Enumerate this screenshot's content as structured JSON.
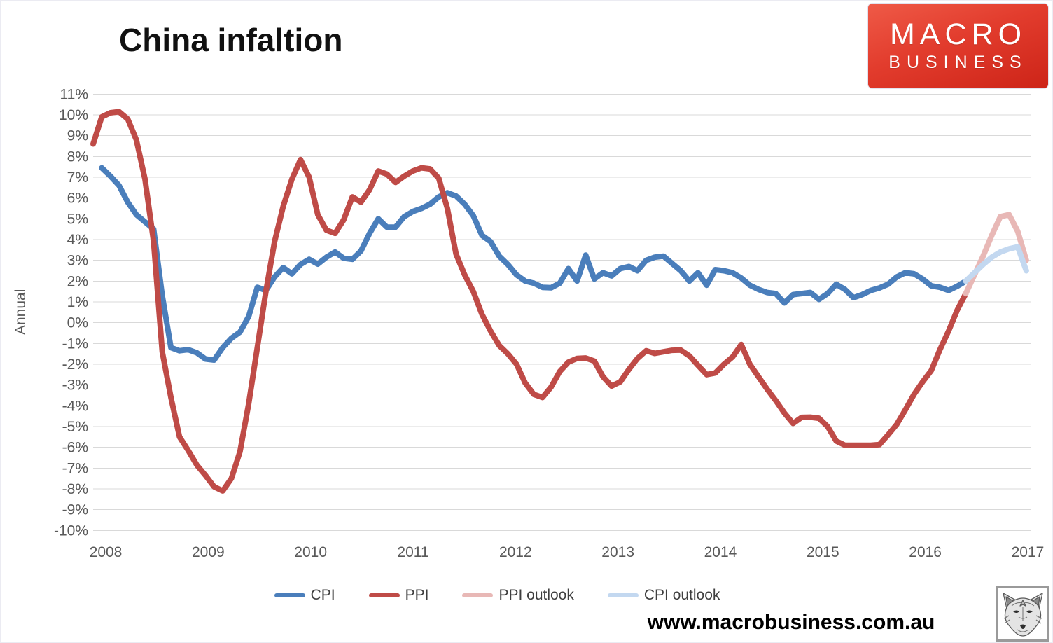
{
  "title": "China infaltion",
  "logo": {
    "line1": "MACRO",
    "line2": "BUSINESS"
  },
  "footer": {
    "url": "www.macrobusiness.com.au",
    "wolf_logo_icon": "wolf-sketch-icon"
  },
  "colors": {
    "cpi": "#4a7ebb",
    "ppi": "#bf4b47",
    "ppi_outlook": "#e8b8b6",
    "cpi_outlook": "#c3d8f0",
    "gridline": "#d9d9d9",
    "axis_text": "#595959",
    "logo_red": "#d93025"
  },
  "chart_data": {
    "type": "line",
    "title": "China infaltion",
    "xlabel": "",
    "ylabel": "Annual",
    "ylim": [
      -10,
      11
    ],
    "ytick_step": 1,
    "ytick_suffix": "%",
    "grid": true,
    "legend_position": "bottom",
    "x_years": [
      2008,
      2009,
      2010,
      2011,
      2012,
      2013,
      2014,
      2015,
      2016,
      2017
    ],
    "x_unit": "months from Jan 2008",
    "series": [
      {
        "name": "CPI",
        "color": "#4a7ebb",
        "start_month": 1,
        "values": [
          7.45,
          7.05,
          6.6,
          5.8,
          5.2,
          4.85,
          4.5,
          1.3,
          -1.2,
          -1.35,
          -1.3,
          -1.45,
          -1.75,
          -1.8,
          -1.2,
          -0.75,
          -0.45,
          0.3,
          1.7,
          1.55,
          2.2,
          2.65,
          2.35,
          2.8,
          3.05,
          2.82,
          3.15,
          3.4,
          3.1,
          3.05,
          3.45,
          4.3,
          5.0,
          4.6,
          4.6,
          5.1,
          5.35,
          5.5,
          5.7,
          6.05,
          6.25,
          6.1,
          5.7,
          5.15,
          4.2,
          3.9,
          3.2,
          2.8,
          2.3,
          2.0,
          1.9,
          1.7,
          1.68,
          1.9,
          2.6,
          2.0,
          3.25,
          2.1,
          2.4,
          2.25,
          2.6,
          2.7,
          2.5,
          3.0,
          3.15,
          3.2,
          2.85,
          2.5,
          2.0,
          2.4,
          1.8,
          2.55,
          2.5,
          2.4,
          2.15,
          1.8,
          1.6,
          1.45,
          1.4,
          0.95,
          1.35,
          1.4,
          1.45,
          1.12,
          1.4,
          1.85,
          1.6,
          1.2,
          1.35,
          1.55,
          1.67,
          1.85,
          2.2,
          2.4,
          2.35,
          2.1,
          1.77,
          1.7,
          1.55,
          1.75,
          2.0
        ]
      },
      {
        "name": "PPI",
        "color": "#bf4b47",
        "start_month": 0,
        "values": [
          8.6,
          9.9,
          10.1,
          10.15,
          9.8,
          8.8,
          6.9,
          3.9,
          -1.4,
          -3.6,
          -5.5,
          -6.15,
          -6.85,
          -7.35,
          -7.9,
          -8.1,
          -7.5,
          -6.2,
          -3.9,
          -1.2,
          1.5,
          3.9,
          5.6,
          6.9,
          7.85,
          7.0,
          5.2,
          4.45,
          4.3,
          4.95,
          6.05,
          5.8,
          6.4,
          7.3,
          7.15,
          6.75,
          7.05,
          7.3,
          7.45,
          7.4,
          6.95,
          5.5,
          3.3,
          2.3,
          1.5,
          0.4,
          -0.4,
          -1.1,
          -1.5,
          -2.0,
          -2.9,
          -3.45,
          -3.6,
          -3.1,
          -2.35,
          -1.9,
          -1.72,
          -1.7,
          -1.85,
          -2.6,
          -3.05,
          -2.85,
          -2.25,
          -1.72,
          -1.35,
          -1.48,
          -1.4,
          -1.33,
          -1.32,
          -1.6,
          -2.05,
          -2.5,
          -2.42,
          -2.0,
          -1.65,
          -1.05,
          -2.0,
          -2.6,
          -3.2,
          -3.75,
          -4.35,
          -4.85,
          -4.56,
          -4.55,
          -4.6,
          -5.0,
          -5.7,
          -5.9,
          -5.9,
          -5.9,
          -5.9,
          -5.87,
          -5.4,
          -4.9,
          -4.2,
          -3.45,
          -2.85,
          -2.3,
          -1.3,
          -0.4,
          0.6,
          1.4
        ]
      },
      {
        "name": "PPI outlook",
        "color": "#e8b8b6",
        "start_month": 101,
        "values": [
          1.4,
          2.3,
          3.2,
          4.2,
          5.1,
          5.2,
          4.4,
          3.0
        ]
      },
      {
        "name": "CPI outlook",
        "color": "#c3d8f0",
        "start_month": 101,
        "values": [
          2.0,
          2.4,
          2.8,
          3.15,
          3.4,
          3.55,
          3.65,
          2.5
        ]
      }
    ]
  }
}
